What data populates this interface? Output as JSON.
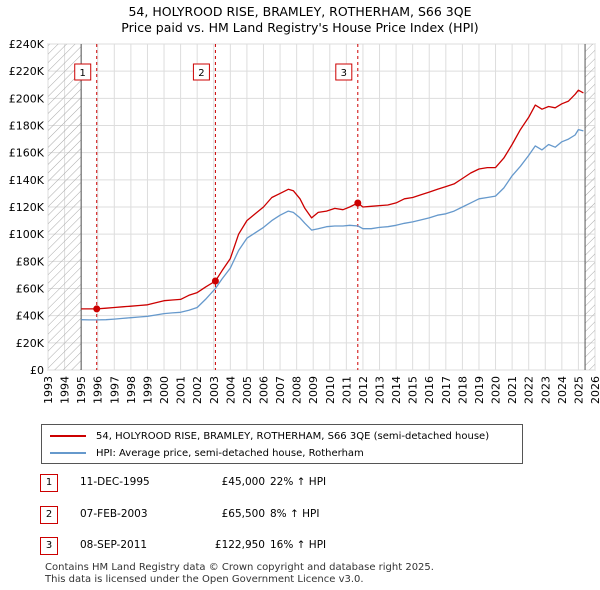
{
  "title_line1": "54, HOLYROOD RISE, BRAMLEY, ROTHERHAM, S66 3QE",
  "title_line2": "Price paid vs. HM Land Registry's House Price Index (HPI)",
  "chart_data": {
    "type": "line",
    "x_range": [
      1993,
      2026
    ],
    "ylim": [
      0,
      240000
    ],
    "y_ticks": [
      0,
      20000,
      40000,
      60000,
      80000,
      100000,
      120000,
      140000,
      160000,
      180000,
      200000,
      220000,
      240000
    ],
    "y_tick_labels": [
      "£0",
      "£20K",
      "£40K",
      "£60K",
      "£80K",
      "£100K",
      "£120K",
      "£140K",
      "£160K",
      "£180K",
      "£200K",
      "£220K",
      "£240K"
    ],
    "x_tick_labels": [
      "1993",
      "1994",
      "1995",
      "1996",
      "1997",
      "1998",
      "1999",
      "2000",
      "2001",
      "2002",
      "2003",
      "2004",
      "2005",
      "2006",
      "2007",
      "2008",
      "2009",
      "2010",
      "2011",
      "2012",
      "2013",
      "2014",
      "2015",
      "2016",
      "2017",
      "2018",
      "2019",
      "2020",
      "2021",
      "2022",
      "2023",
      "2024",
      "2025",
      "2026"
    ],
    "data_start": 1995.0,
    "data_end": 2025.4,
    "series": [
      {
        "name": "54, HOLYROOD RISE, BRAMLEY, ROTHERHAM, S66 3QE (semi-detached house)",
        "color": "#cc0000",
        "x": [
          1995.0,
          1995.5,
          1995.94,
          1996.5,
          1997.0,
          1997.5,
          1998.0,
          1998.5,
          1999.0,
          1999.5,
          2000.0,
          2000.5,
          2001.0,
          2001.5,
          2002.0,
          2002.5,
          2003.1,
          2003.5,
          2004.0,
          2004.5,
          2005.0,
          2005.5,
          2006.0,
          2006.5,
          2007.0,
          2007.5,
          2007.8,
          2008.2,
          2008.5,
          2008.9,
          2009.3,
          2009.8,
          2010.3,
          2010.8,
          2011.2,
          2011.69,
          2012.0,
          2012.5,
          2013.0,
          2013.5,
          2014.0,
          2014.5,
          2015.0,
          2015.5,
          2016.0,
          2016.5,
          2017.0,
          2017.5,
          2018.0,
          2018.5,
          2019.0,
          2019.5,
          2020.0,
          2020.5,
          2021.0,
          2021.5,
          2022.0,
          2022.4,
          2022.8,
          2023.2,
          2023.6,
          2024.0,
          2024.4,
          2024.8,
          2025.0,
          2025.3
        ],
        "values": [
          45000,
          45000,
          45000,
          45500,
          46000,
          46500,
          47000,
          47500,
          48000,
          49500,
          51000,
          51500,
          52000,
          55000,
          57000,
          61000,
          65500,
          73000,
          82000,
          100000,
          110000,
          115000,
          120000,
          127000,
          130000,
          133000,
          132000,
          126000,
          119000,
          112000,
          116000,
          117000,
          119000,
          118000,
          120000,
          122950,
          120000,
          120500,
          121000,
          121500,
          123000,
          126000,
          127000,
          129000,
          131000,
          133000,
          135000,
          137000,
          141000,
          145000,
          148000,
          149000,
          149000,
          156000,
          166000,
          177000,
          186000,
          195000,
          192000,
          194000,
          193000,
          196000,
          198000,
          203000,
          206000,
          204000
        ]
      },
      {
        "name": "HPI: Average price, semi-detached house, Rotherham",
        "color": "#6699cc",
        "x": [
          1995.0,
          1995.5,
          1996.0,
          1996.5,
          1997.0,
          1997.5,
          1998.0,
          1998.5,
          1999.0,
          1999.5,
          2000.0,
          2000.5,
          2001.0,
          2001.5,
          2002.0,
          2002.5,
          2003.1,
          2003.5,
          2004.0,
          2004.5,
          2005.0,
          2005.5,
          2006.0,
          2006.5,
          2007.0,
          2007.5,
          2007.8,
          2008.2,
          2008.5,
          2008.9,
          2009.3,
          2009.8,
          2010.3,
          2010.8,
          2011.2,
          2011.7,
          2012.0,
          2012.5,
          2013.0,
          2013.5,
          2014.0,
          2014.5,
          2015.0,
          2015.5,
          2016.0,
          2016.5,
          2017.0,
          2017.5,
          2018.0,
          2018.5,
          2019.0,
          2019.5,
          2020.0,
          2020.5,
          2021.0,
          2021.5,
          2022.0,
          2022.4,
          2022.8,
          2023.2,
          2023.6,
          2024.0,
          2024.4,
          2024.8,
          2025.0,
          2025.3
        ],
        "values": [
          37000,
          36900,
          36900,
          37000,
          37500,
          38000,
          38500,
          39000,
          39500,
          40500,
          41500,
          42000,
          42500,
          44000,
          46000,
          52000,
          60000,
          67000,
          75000,
          88000,
          97000,
          101000,
          105000,
          110000,
          114000,
          117000,
          116000,
          112000,
          108000,
          103000,
          104000,
          105500,
          106000,
          106000,
          106500,
          106000,
          104000,
          104000,
          105000,
          105500,
          106500,
          108000,
          109000,
          110500,
          112000,
          114000,
          115000,
          117000,
          120000,
          123000,
          126000,
          127000,
          128000,
          134000,
          143000,
          150000,
          158000,
          165000,
          162000,
          166000,
          164000,
          168000,
          170000,
          173000,
          177000,
          176000
        ]
      }
    ],
    "annotations": [
      {
        "label": "1",
        "date": 1995.94,
        "value": 45000
      },
      {
        "label": "2",
        "date": 2003.1,
        "value": 65500
      },
      {
        "label": "3",
        "date": 2011.69,
        "value": 122950
      }
    ],
    "colors": {
      "price": "#cc0000",
      "hpi": "#6699cc",
      "hatch": "#999999",
      "grid": "#dddddd"
    }
  },
  "legend": [
    {
      "label": "54, HOLYROOD RISE, BRAMLEY, ROTHERHAM, S66 3QE (semi-detached house)",
      "color": "#cc0000"
    },
    {
      "label": "HPI: Average price, semi-detached house, Rotherham",
      "color": "#6699cc"
    }
  ],
  "transactions": [
    {
      "num": "1",
      "date": "11-DEC-1995",
      "price": "£45,000",
      "hpi": "22% ↑ HPI"
    },
    {
      "num": "2",
      "date": "07-FEB-2003",
      "price": "£65,500",
      "hpi": "8% ↑ HPI"
    },
    {
      "num": "3",
      "date": "08-SEP-2011",
      "price": "£122,950",
      "hpi": "16% ↑ HPI"
    }
  ],
  "footer_line1": "Contains HM Land Registry data © Crown copyright and database right 2025.",
  "footer_line2": "This data is licensed under the Open Government Licence v3.0."
}
